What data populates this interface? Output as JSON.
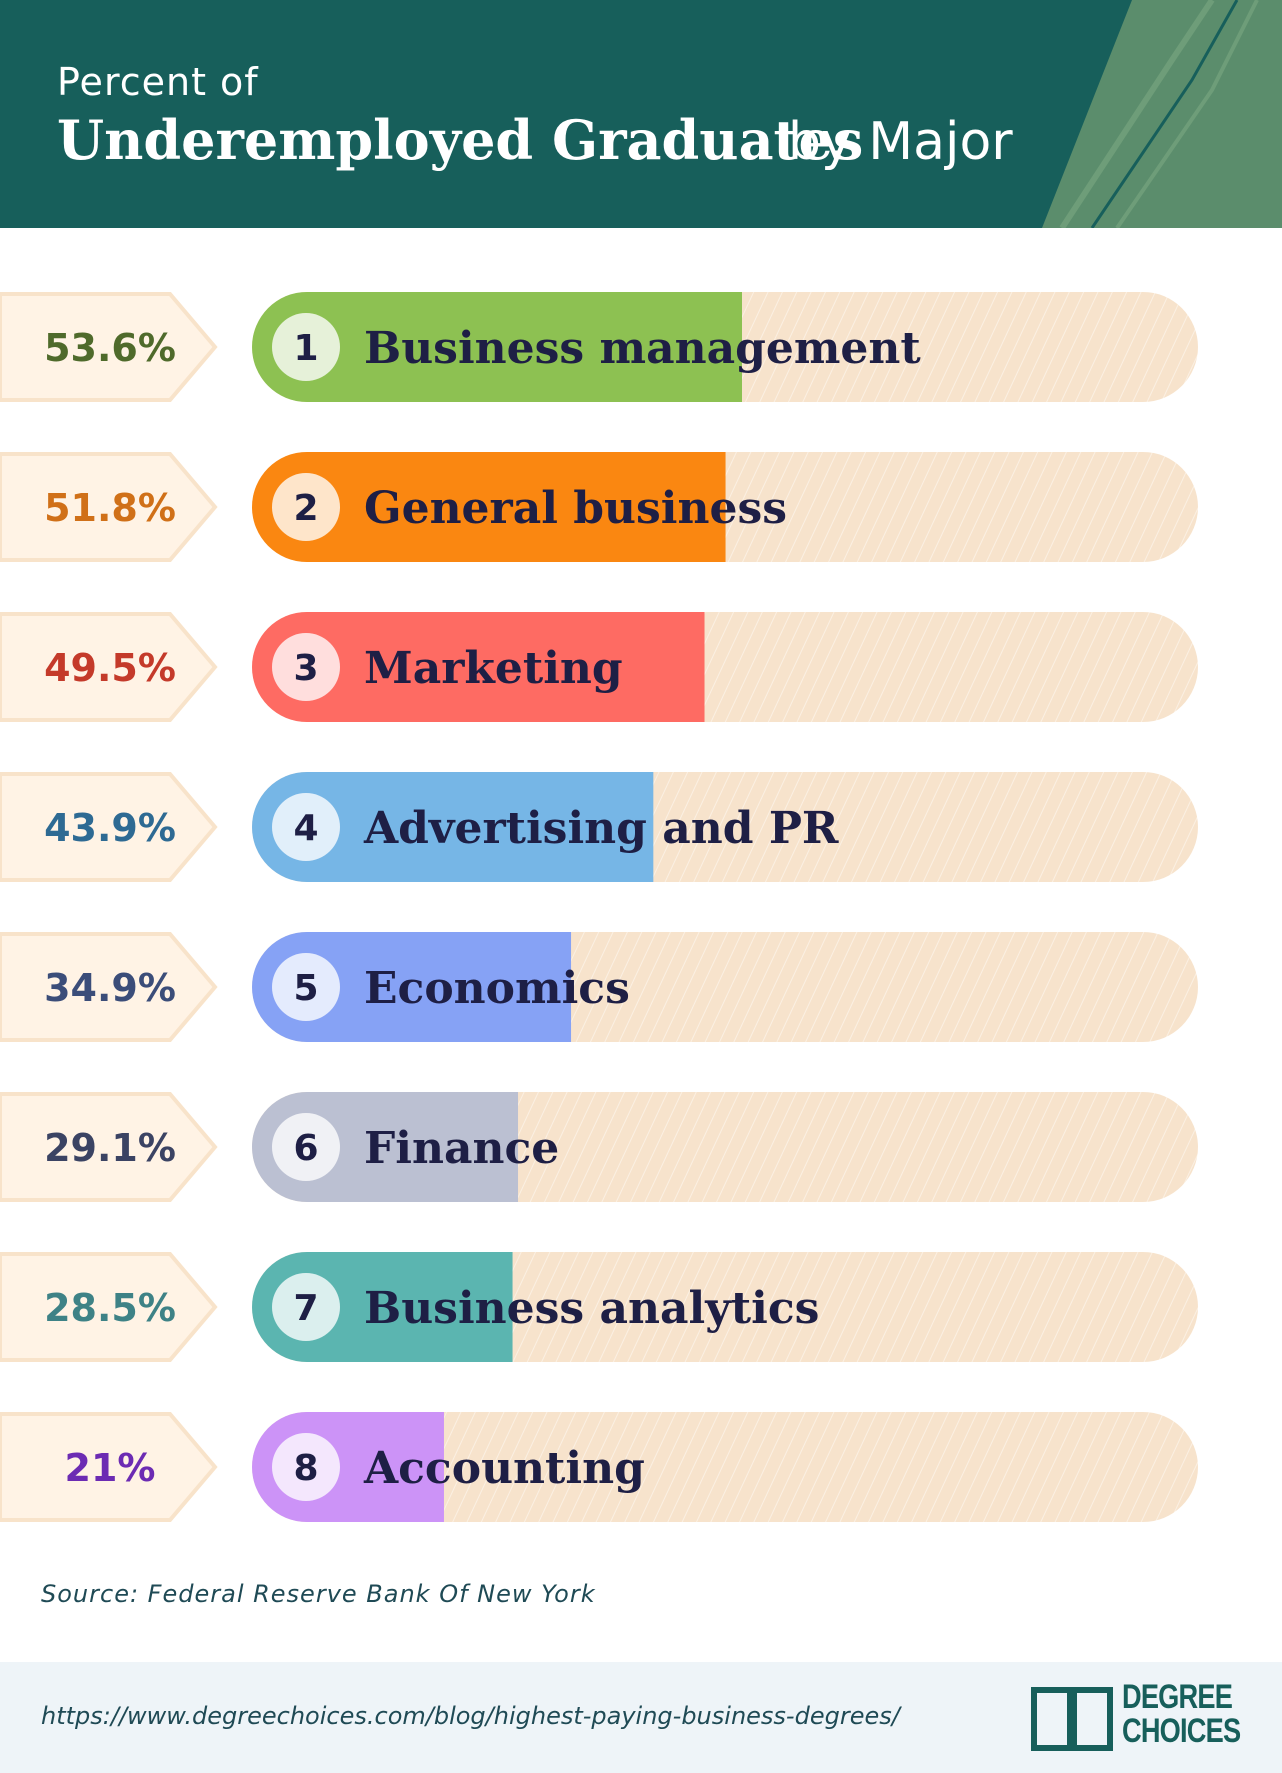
{
  "header": {
    "subtitle": "Percent of",
    "title": "Underemployed Graduates",
    "title_suffix": "by Major"
  },
  "colors": {
    "header_bg": "#175f5b",
    "track": "#f7e3cc",
    "tag_bg": "#fff3e5",
    "tag_border": "#f8e3ca",
    "label_text": "#1e1f45"
  },
  "chart_data": {
    "type": "bar",
    "orientation": "horizontal",
    "title": "Percent of Underemployed Graduates by Major",
    "unit": "%",
    "xlim": [
      0,
      100
    ],
    "categories": [
      "Business management",
      "General business",
      "Marketing",
      "Advertising and PR",
      "Economics",
      "Finance",
      "Business analytics",
      "Accounting"
    ],
    "ranks": [
      "1",
      "2",
      "3",
      "4",
      "5",
      "6",
      "7",
      "8"
    ],
    "values": [
      53.6,
      51.8,
      49.5,
      43.9,
      34.9,
      29.1,
      28.5,
      21
    ],
    "value_labels": [
      "53.6%",
      "51.8%",
      "49.5%",
      "43.9%",
      "34.9%",
      "29.1%",
      "28.5%",
      "21%"
    ],
    "bar_colors": [
      "#8dc152",
      "#fa8711",
      "#fe6b63",
      "#76b6e6",
      "#86a2f5",
      "#bbc0d2",
      "#5bb5b0",
      "#cc93f7"
    ],
    "label_colors": [
      "#4f6a2b",
      "#d07018",
      "#c43a2a",
      "#2e6a93",
      "#3b4d79",
      "#3b4363",
      "#3e8286",
      "#6c2bb3"
    ]
  },
  "source": "Source: Federal Reserve Bank Of New York",
  "footer": {
    "url": "https://www.degreechoices.com/blog/highest-paying-business-degrees/",
    "logo_line1": "DEGREE",
    "logo_line2": "CHOICES"
  }
}
